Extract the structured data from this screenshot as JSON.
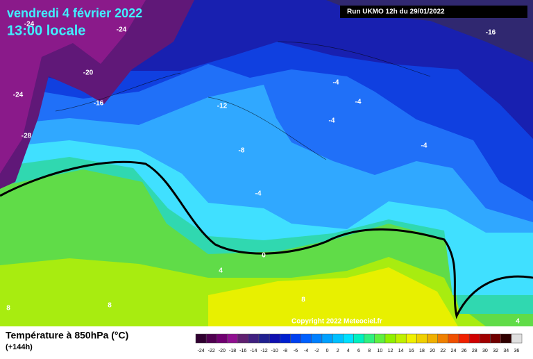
{
  "header": {
    "title": "vendredi 4 février 2022",
    "subtitle": "13:00 locale",
    "run": "Run UKMO 12h du 29/01/2022"
  },
  "map": {
    "contour_labels": [
      "-24",
      "-24",
      "-24",
      "-20",
      "-16",
      "-28",
      "-12",
      "-8",
      "-4",
      "-4",
      "-4",
      "-4",
      "-4",
      "0",
      "4",
      "8",
      "8",
      "8",
      "-16",
      "4"
    ],
    "copyright": "Copyright 2022 Meteociel.fr"
  },
  "legend": {
    "title": "Température à 850hPa (°C)",
    "lead": "(+144h)",
    "ticks": [
      "-24",
      "-22",
      "-20",
      "-18",
      "-16",
      "-14",
      "-12",
      "-10",
      "-8",
      "-6",
      "-4",
      "-2",
      "0",
      "2",
      "4",
      "6",
      "8",
      "10",
      "12",
      "14",
      "16",
      "18",
      "20",
      "22",
      "24",
      "26",
      "28",
      "30",
      "32",
      "34",
      "36"
    ]
  }
}
